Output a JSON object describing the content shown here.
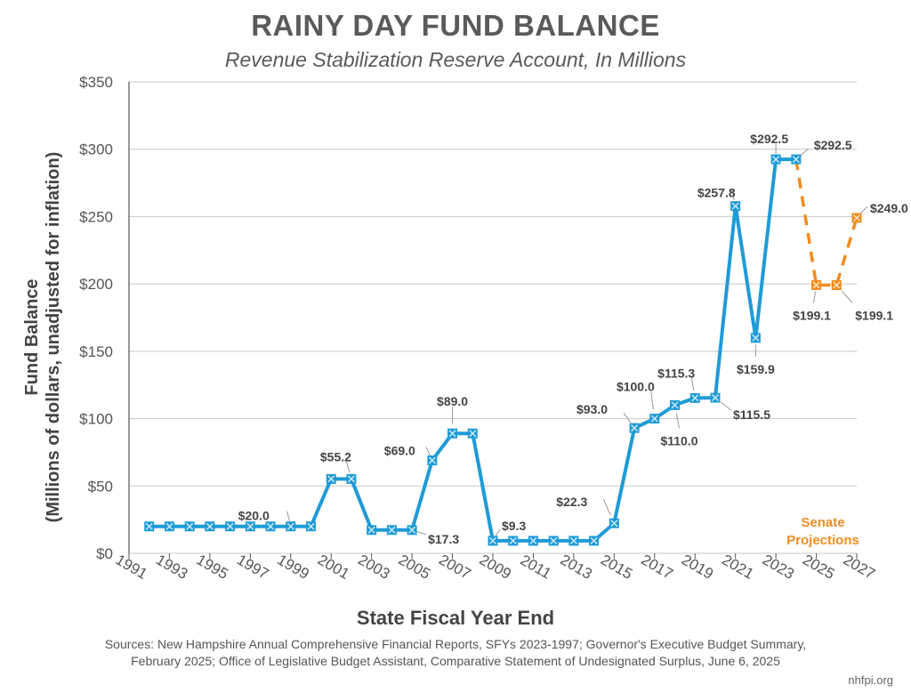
{
  "chart_data": {
    "type": "line",
    "title": "RAINY DAY FUND BALANCE",
    "subtitle": "Revenue Stabilization Reserve Account, In Millions",
    "xlabel": "State Fiscal Year End",
    "ylabel_line1": "Fund Balance",
    "ylabel_line2": "(Millions of dollars, unadjusted for inflation)",
    "ylim": [
      0,
      350
    ],
    "yticks": [
      0,
      50,
      100,
      150,
      200,
      250,
      300,
      350
    ],
    "ytick_labels": [
      "$0",
      "$50",
      "$100",
      "$150",
      "$200",
      "$250",
      "$300",
      "$350"
    ],
    "xlim": [
      1991,
      2027
    ],
    "xticks": [
      1991,
      1993,
      1995,
      1997,
      1999,
      2001,
      2003,
      2005,
      2007,
      2009,
      2011,
      2013,
      2015,
      2017,
      2019,
      2021,
      2023,
      2025,
      2027
    ],
    "grid": true,
    "series": [
      {
        "color": "#1e9bd7",
        "x": [
          1992,
          1993,
          1994,
          1995,
          1996,
          1997,
          1998,
          1999,
          2000,
          2001,
          2002,
          2003,
          2004,
          2005,
          2006,
          2007,
          2008,
          2009,
          2010,
          2011,
          2012,
          2013,
          2014,
          2015,
          2016,
          2017,
          2018,
          2019,
          2020,
          2021,
          2022,
          2023,
          2024
        ],
        "values": [
          20.0,
          20.0,
          20.0,
          20.0,
          20.0,
          20.0,
          20.0,
          20.0,
          20.0,
          55.2,
          55.2,
          17.3,
          17.3,
          17.3,
          69.0,
          89.0,
          89.0,
          9.3,
          9.3,
          9.3,
          9.3,
          9.3,
          9.3,
          22.3,
          93.0,
          100.0,
          110.0,
          115.3,
          115.5,
          257.8,
          159.9,
          292.5,
          292.5
        ]
      },
      {
        "name": "Senate Projections",
        "color": "#f28c1e",
        "dashed": true,
        "x": [
          2024,
          2025,
          2026,
          2027
        ],
        "values": [
          292.5,
          199.1,
          199.1,
          249.0
        ]
      }
    ],
    "annotations": [
      {
        "text": "$20.0",
        "x": 1999,
        "y": 20.0
      },
      {
        "text": "$55.2",
        "x": 2002,
        "y": 55.2
      },
      {
        "text": "$17.3",
        "x": 2005,
        "y": 17.3
      },
      {
        "text": "$69.0",
        "x": 2006,
        "y": 69.0
      },
      {
        "text": "$89.0",
        "x": 2007,
        "y": 89.0
      },
      {
        "text": "$9.3",
        "x": 2009,
        "y": 9.3
      },
      {
        "text": "$22.3",
        "x": 2015,
        "y": 22.3
      },
      {
        "text": "$93.0",
        "x": 2016,
        "y": 93.0
      },
      {
        "text": "$100.0",
        "x": 2017,
        "y": 100.0
      },
      {
        "text": "$110.0",
        "x": 2018,
        "y": 110.0
      },
      {
        "text": "$115.3",
        "x": 2019,
        "y": 115.3
      },
      {
        "text": "$115.5",
        "x": 2020,
        "y": 115.5
      },
      {
        "text": "$257.8",
        "x": 2021,
        "y": 257.8
      },
      {
        "text": "$159.9",
        "x": 2022,
        "y": 159.9
      },
      {
        "text": "$292.5",
        "x": 2023,
        "y": 292.5
      },
      {
        "text": "$292.5",
        "x": 2024,
        "y": 292.5
      },
      {
        "text": "$199.1",
        "x": 2025,
        "y": 199.1
      },
      {
        "text": "$199.1",
        "x": 2026,
        "y": 199.1
      },
      {
        "text": "$249.0",
        "x": 2027,
        "y": 249.0
      }
    ],
    "legend_note": [
      "Senate",
      "Projections"
    ]
  },
  "sources_line1": "Sources: New Hampshire Annual Comprehensive Financial Reports, SFYs 2023-1997; Governor's Executive Budget Summary,",
  "sources_line2": "February 2025; Office of Legislative Budget Assistant, Comparative Statement of Undesignated Surplus, June 6, 2025",
  "credit": "nhfpi.org"
}
